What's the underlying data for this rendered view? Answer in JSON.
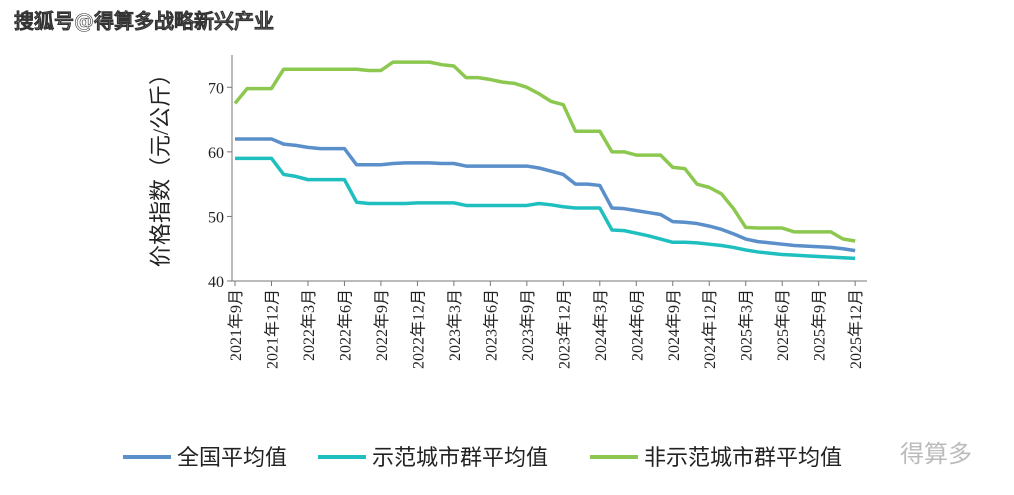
{
  "chart_data": {
    "type": "line",
    "annotations": [
      "搜狐号@得算多战略新兴产业",
      "得算多"
    ],
    "y_label": "价格指数（元/公斤）",
    "categories": [
      "2021年9月",
      null,
      null,
      "2021年12月",
      null,
      null,
      "2022年3月",
      null,
      null,
      "2022年6月",
      null,
      null,
      "2022年9月",
      null,
      null,
      "2022年12月",
      null,
      null,
      "2023年3月",
      null,
      null,
      "2023年6月",
      null,
      null,
      "2023年9月",
      null,
      null,
      "2023年12月",
      null,
      null,
      "2024年3月",
      null,
      null,
      "2024年6月",
      null,
      null,
      "2024年9月",
      null,
      null,
      "2024年12月",
      null,
      null,
      "2025年3月",
      null,
      null,
      "2025年6月",
      null,
      null,
      "2025年9月",
      null,
      null,
      "2025年12月"
    ],
    "series": [
      {
        "name": "全国平均值",
        "color": "#5b8fc9",
        "values": [
          62,
          62,
          62,
          62,
          61.2,
          61,
          60.7,
          60.5,
          60.5,
          60.5,
          58,
          58,
          58,
          58.2,
          58.3,
          58.3,
          58.3,
          58.2,
          58.2,
          57.8,
          57.8,
          57.8,
          57.8,
          57.8,
          57.8,
          57.5,
          57,
          56.5,
          55,
          55,
          54.8,
          51.3,
          51.2,
          50.9,
          50.6,
          50.3,
          49.2,
          49.1,
          48.9,
          48.5,
          48,
          47.3,
          46.5,
          46.1,
          45.9,
          45.7,
          45.5,
          45.4,
          45.3,
          45.2,
          45,
          44.7
        ]
      },
      {
        "name": "示范城市群平均值",
        "color": "#20bfbf",
        "values": [
          59,
          59,
          59,
          59,
          56.5,
          56.2,
          55.7,
          55.7,
          55.7,
          55.7,
          52.2,
          52,
          52,
          52,
          52,
          52.1,
          52.1,
          52.1,
          52.1,
          51.7,
          51.7,
          51.7,
          51.7,
          51.7,
          51.7,
          52,
          51.8,
          51.5,
          51.3,
          51.3,
          51.3,
          47.9,
          47.8,
          47.4,
          47,
          46.5,
          46,
          46,
          45.9,
          45.7,
          45.5,
          45.2,
          44.8,
          44.5,
          44.3,
          44.1,
          44,
          43.9,
          43.8,
          43.7,
          43.6,
          43.5
        ]
      },
      {
        "name": "非示范城市群平均值",
        "color": "#8cc850",
        "values": [
          67.5,
          69.8,
          69.8,
          69.8,
          72.8,
          72.8,
          72.8,
          72.8,
          72.8,
          72.8,
          72.8,
          72.6,
          72.6,
          73.9,
          73.9,
          73.9,
          73.9,
          73.5,
          73.3,
          71.5,
          71.5,
          71.2,
          70.8,
          70.6,
          70,
          69,
          67.8,
          67.3,
          63.2,
          63.2,
          63.2,
          60,
          60,
          59.5,
          59.5,
          59.5,
          57.6,
          57.4,
          55,
          54.5,
          53.5,
          51.2,
          48.3,
          48.2,
          48.2,
          48.2,
          47.6,
          47.6,
          47.6,
          47.6,
          46.5,
          46.2
        ]
      }
    ],
    "ylim": [
      40,
      75
    ],
    "yticks": [
      40,
      50,
      60,
      70
    ],
    "grid": false
  }
}
